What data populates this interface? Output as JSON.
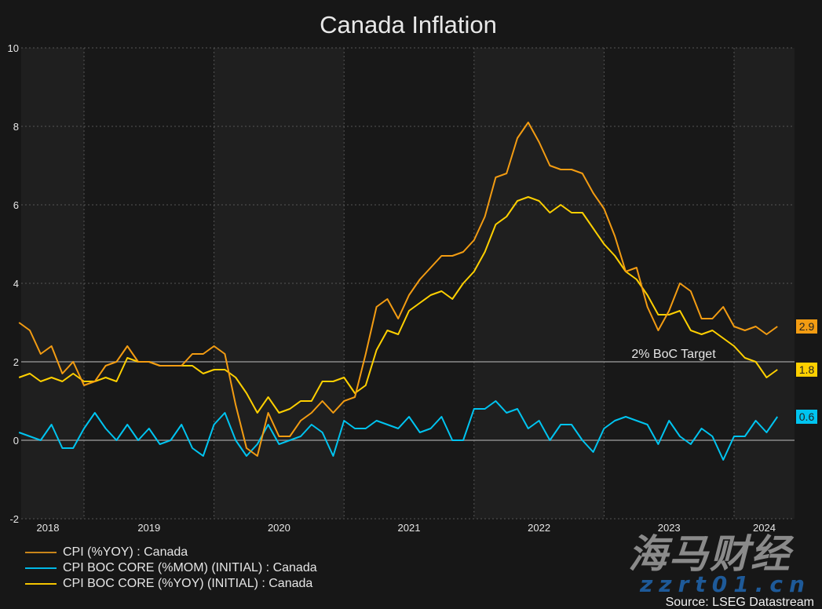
{
  "chart_data": {
    "type": "line",
    "title": "Canada Inflation",
    "x_start": "2018-07",
    "x_frequency": "monthly",
    "x_end": "2024-05",
    "xtick_labels": [
      "2018",
      "2019",
      "2020",
      "2021",
      "2022",
      "2023",
      "2024"
    ],
    "ylim": [
      -2,
      10
    ],
    "yticks": [
      -2,
      0,
      2,
      4,
      6,
      8,
      10
    ],
    "grid": true,
    "reference_line": {
      "value": 2,
      "label": "2% BoC Target"
    },
    "legend_position": "bottom-left",
    "series": [
      {
        "name": "CPI (%YOY) : Canada",
        "color": "#f39c12",
        "last_label": "2.9",
        "values": [
          3.0,
          2.8,
          2.2,
          2.4,
          1.7,
          2.0,
          1.4,
          1.5,
          1.9,
          2.0,
          2.4,
          2.0,
          2.0,
          1.9,
          1.9,
          1.9,
          2.2,
          2.2,
          2.4,
          2.2,
          0.9,
          -0.2,
          -0.4,
          0.7,
          0.1,
          0.1,
          0.5,
          0.7,
          1.0,
          0.7,
          1.0,
          1.1,
          2.2,
          3.4,
          3.6,
          3.1,
          3.7,
          4.1,
          4.4,
          4.7,
          4.7,
          4.8,
          5.1,
          5.7,
          6.7,
          6.8,
          7.7,
          8.1,
          7.6,
          7.0,
          6.9,
          6.9,
          6.8,
          6.3,
          5.9,
          5.2,
          4.3,
          4.4,
          3.4,
          2.8,
          3.3,
          4.0,
          3.8,
          3.1,
          3.1,
          3.4,
          2.9,
          2.8,
          2.9,
          2.7,
          2.9
        ]
      },
      {
        "name": "CPI BOC CORE (%MOM) (INITIAL) : Canada",
        "color": "#00c4f0",
        "last_label": "0.6",
        "values": [
          0.2,
          0.1,
          0.0,
          0.4,
          -0.2,
          -0.2,
          0.3,
          0.7,
          0.3,
          0.0,
          0.4,
          0.0,
          0.3,
          -0.1,
          0.0,
          0.4,
          -0.2,
          -0.4,
          0.4,
          0.7,
          0.0,
          -0.4,
          -0.1,
          0.4,
          -0.1,
          0.0,
          0.1,
          0.4,
          0.2,
          -0.4,
          0.5,
          0.3,
          0.3,
          0.5,
          0.4,
          0.3,
          0.6,
          0.2,
          0.3,
          0.6,
          0.0,
          0.0,
          0.8,
          0.8,
          1.0,
          0.7,
          0.8,
          0.3,
          0.5,
          0.0,
          0.4,
          0.4,
          0.0,
          -0.3,
          0.3,
          0.5,
          0.6,
          0.5,
          0.4,
          -0.1,
          0.5,
          0.1,
          -0.1,
          0.3,
          0.1,
          -0.5,
          0.1,
          0.1,
          0.5,
          0.2,
          0.6
        ]
      },
      {
        "name": "CPI BOC CORE (%YOY) (INITIAL) : Canada",
        "color": "#ffd000",
        "last_label": "1.8",
        "values": [
          1.6,
          1.7,
          1.5,
          1.6,
          1.5,
          1.7,
          1.5,
          1.5,
          1.6,
          1.5,
          2.1,
          2.0,
          2.0,
          1.9,
          1.9,
          1.9,
          1.9,
          1.7,
          1.8,
          1.8,
          1.6,
          1.2,
          0.7,
          1.1,
          0.7,
          0.8,
          1.0,
          1.0,
          1.5,
          1.5,
          1.6,
          1.2,
          1.4,
          2.3,
          2.8,
          2.7,
          3.3,
          3.5,
          3.7,
          3.8,
          3.6,
          4.0,
          4.3,
          4.8,
          5.5,
          5.7,
          6.1,
          6.2,
          6.1,
          5.8,
          6.0,
          5.8,
          5.8,
          5.4,
          5.0,
          4.7,
          4.3,
          4.1,
          3.7,
          3.2,
          3.2,
          3.3,
          2.8,
          2.7,
          2.8,
          2.6,
          2.4,
          2.1,
          2.0,
          1.6,
          1.8
        ]
      }
    ]
  },
  "source": "Source: LSEG Datastream",
  "watermark": {
    "text": "海马财经",
    "url_text": "zzrt01.cn"
  }
}
